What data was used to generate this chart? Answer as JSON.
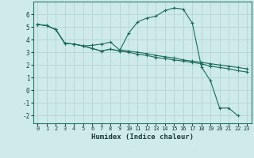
{
  "xlabel": "Humidex (Indice chaleur)",
  "background_color": "#ceeaea",
  "grid_color": "#b8d8d8",
  "line_color": "#1a6b5a",
  "xlim": [
    -0.5,
    23.5
  ],
  "ylim": [
    -2.6,
    7.0
  ],
  "yticks": [
    -2,
    -1,
    0,
    1,
    2,
    3,
    4,
    5,
    6
  ],
  "xticks": [
    0,
    1,
    2,
    3,
    4,
    5,
    6,
    7,
    8,
    9,
    10,
    11,
    12,
    13,
    14,
    15,
    16,
    17,
    18,
    19,
    20,
    21,
    22,
    23
  ],
  "s1_x": [
    0,
    1,
    2,
    3,
    4,
    5,
    6,
    7,
    8,
    9,
    10,
    11,
    12,
    13,
    14,
    15,
    16,
    17,
    18,
    19,
    20,
    21,
    22
  ],
  "s1_y": [
    5.2,
    5.1,
    4.8,
    3.7,
    3.65,
    3.5,
    3.3,
    3.1,
    3.25,
    3.1,
    4.5,
    5.4,
    5.7,
    5.85,
    6.3,
    6.5,
    6.4,
    5.3,
    1.85,
    0.75,
    -1.4,
    -1.4,
    -2.0
  ],
  "s2_x": [
    0,
    1,
    2,
    3,
    4,
    5,
    6,
    7,
    8,
    9,
    10,
    11,
    12,
    13,
    14,
    15,
    16,
    17,
    18,
    19,
    20,
    21,
    22,
    23
  ],
  "s2_y": [
    5.2,
    5.1,
    4.8,
    3.7,
    3.65,
    3.5,
    3.55,
    3.65,
    3.8,
    3.2,
    3.1,
    3.0,
    2.9,
    2.75,
    2.65,
    2.55,
    2.4,
    2.3,
    2.2,
    2.1,
    2.0,
    1.9,
    1.8,
    1.7
  ],
  "s3_x": [
    0,
    1,
    2,
    3,
    4,
    5,
    6,
    7,
    8,
    9,
    10,
    11,
    12,
    13,
    14,
    15,
    16,
    17,
    18,
    19,
    20,
    21,
    22,
    23
  ],
  "s3_y": [
    5.2,
    5.1,
    4.8,
    3.7,
    3.65,
    3.5,
    3.3,
    3.1,
    3.25,
    3.1,
    3.0,
    2.85,
    2.75,
    2.6,
    2.5,
    2.4,
    2.3,
    2.2,
    2.1,
    1.9,
    1.8,
    1.7,
    1.55,
    1.45
  ]
}
